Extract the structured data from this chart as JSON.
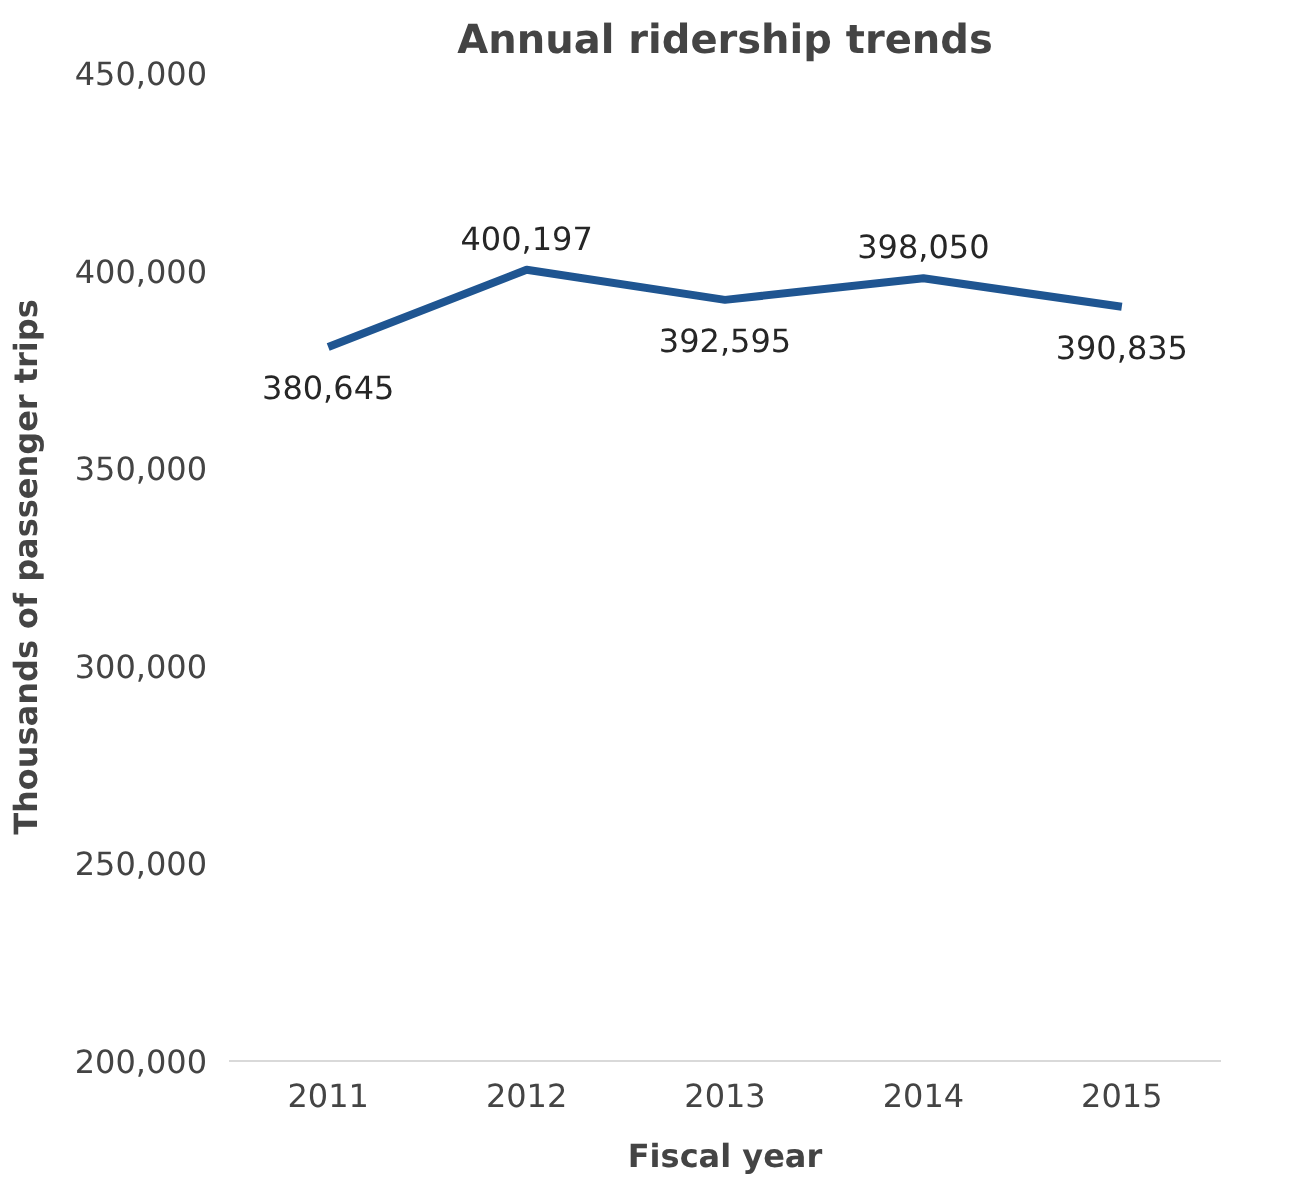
{
  "chart_data": {
    "type": "line",
    "title": "Annual ridership trends",
    "xlabel": "Fiscal year",
    "ylabel": "Thousands of passenger trips",
    "categories": [
      "2011",
      "2012",
      "2013",
      "2014",
      "2015"
    ],
    "series": [
      {
        "color": "#1f5591",
        "values": [
          380645,
          400197,
          392595,
          398050,
          390835
        ],
        "value_labels": [
          "380,645",
          "400,197",
          "392,595",
          "398,050",
          "390,835"
        ]
      }
    ],
    "ylim": [
      200000,
      450000
    ],
    "yticks": [
      {
        "value": 200000,
        "label": "200,000"
      },
      {
        "value": 250000,
        "label": "250,000"
      },
      {
        "value": 300000,
        "label": "300,000"
      },
      {
        "value": 350000,
        "label": "350,000"
      },
      {
        "value": 400000,
        "label": "400,000"
      },
      {
        "value": 450000,
        "label": "450,000"
      }
    ],
    "grid": false,
    "marker": "none",
    "line_style": "solid"
  }
}
